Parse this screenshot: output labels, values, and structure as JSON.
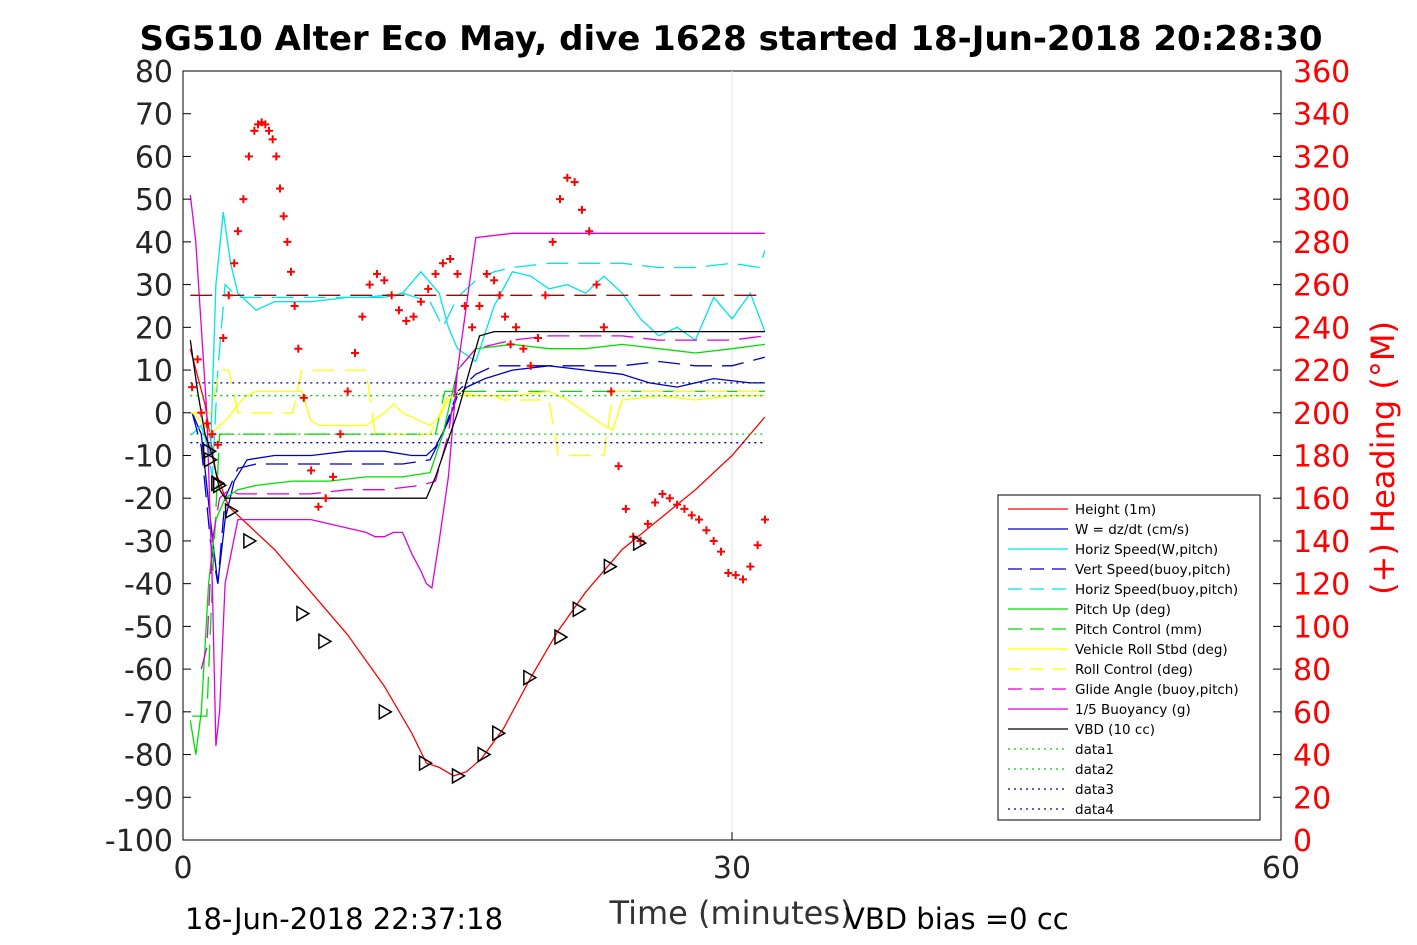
{
  "chart_data": {
    "type": "line",
    "title": "SG510 Alter Eco May, dive 1628 started 18-Jun-2018 20:28:30",
    "xlabel": "Time (minutes)",
    "ylabel_right": "(+) Heading (°M)",
    "xlim": [
      0,
      60
    ],
    "ylim_left": [
      -100,
      80
    ],
    "ylim_right": [
      0,
      360
    ],
    "x_ticks": [
      "0",
      "30",
      "60"
    ],
    "y_ticks_left": [
      "80",
      "70",
      "60",
      "50",
      "40",
      "30",
      "20",
      "10",
      "0",
      "-10",
      "-20",
      "-30",
      "-40",
      "-50",
      "-60",
      "-70",
      "-80",
      "-90",
      "-100"
    ],
    "y_ticks_right": [
      "360",
      "340",
      "320",
      "300",
      "280",
      "260",
      "240",
      "220",
      "200",
      "180",
      "160",
      "140",
      "120",
      "100",
      "80",
      "60",
      "40",
      "20",
      "0"
    ],
    "grid": "x-only",
    "footer_left": "18-Jun-2018 22:37:18",
    "footer_right": "VBD bias =0 cc",
    "legend_position": "lower-right",
    "legend": [
      {
        "name": "Height (1m)",
        "color": "#ff0000",
        "style": "solid"
      },
      {
        "name": "W = dz/dt (cm/s)",
        "color": "#0000cc",
        "style": "solid"
      },
      {
        "name": "Horiz Speed(W,pitch)",
        "color": "#00e5e5",
        "style": "solid"
      },
      {
        "name": "Vert Speed(buoy,pitch)",
        "color": "#0000cc",
        "style": "dashed"
      },
      {
        "name": "Horiz Speed(buoy,pitch)",
        "color": "#00e5e5",
        "style": "dashed"
      },
      {
        "name": "Pitch Up (deg)",
        "color": "#00dd00",
        "style": "solid"
      },
      {
        "name": "Pitch Control (mm)",
        "color": "#00dd00",
        "style": "dashed"
      },
      {
        "name": "Vehicle Roll Stbd (deg)",
        "color": "#ffff00",
        "style": "solid"
      },
      {
        "name": "Roll Control (deg)",
        "color": "#ffff00",
        "style": "dashed"
      },
      {
        "name": "Glide Angle (buoy,pitch)",
        "color": "#dd00dd",
        "style": "dashed"
      },
      {
        "name": "1/5 Buoyancy (g)",
        "color": "#dd00dd",
        "style": "solid"
      },
      {
        "name": "VBD (10 cc)",
        "color": "#000000",
        "style": "solid"
      },
      {
        "name": "data1",
        "color": "#00cc00",
        "style": "dotted"
      },
      {
        "name": "data2",
        "color": "#00cc00",
        "style": "dotted"
      },
      {
        "name": "data3",
        "color": "#000088",
        "style": "dotted"
      },
      {
        "name": "data4",
        "color": "#000088",
        "style": "dotted"
      }
    ],
    "series": [
      {
        "name": "Height (1m)",
        "color": "#ff0000",
        "style": "solid",
        "x": [
          0.4,
          1.2,
          1.8,
          2.5,
          3.5,
          5,
          7,
          9,
          11,
          12.5,
          13.3,
          14,
          14.8,
          15.5,
          16.3,
          17.5,
          19,
          20.5,
          22,
          24,
          26,
          28,
          30,
          31.8
        ],
        "y": [
          15,
          2,
          -14,
          -22,
          -26,
          -32,
          -42,
          -52,
          -64,
          -75,
          -82,
          -83,
          -85,
          -84,
          -81,
          -74,
          -62,
          -51,
          -42,
          -32,
          -25,
          -18,
          -10,
          -1
        ]
      },
      {
        "name": "W = dz/dt (cm/s)",
        "color": "#0000cc",
        "style": "solid",
        "x": [
          0.5,
          1,
          1.5,
          1.9,
          2.3,
          2.8,
          3.5,
          5,
          7,
          9,
          11,
          12.5,
          13.3,
          13.8,
          14.5,
          15,
          15.5,
          16.5,
          18,
          20,
          22,
          24,
          25.5,
          27,
          29,
          31,
          31.8
        ],
        "y": [
          0,
          -5,
          -25,
          -40,
          -25,
          -16,
          -11,
          -10,
          -10,
          -9,
          -9,
          -10,
          -10,
          -8,
          -2,
          4,
          6,
          8,
          10,
          11,
          10,
          9,
          7,
          6,
          8,
          7,
          7
        ]
      },
      {
        "name": "Horiz Speed(W,pitch)",
        "color": "#00e5e5",
        "style": "solid",
        "x": [
          0.5,
          1,
          1.5,
          1.8,
          2.2,
          2.6,
          3,
          4,
          5,
          7,
          9,
          11,
          12,
          13,
          14,
          14.5,
          15,
          16,
          17,
          18,
          19,
          20,
          21,
          22,
          23,
          24,
          25,
          26,
          27,
          28,
          29,
          30,
          31,
          31.8
        ],
        "y": [
          -5,
          -3,
          -10,
          30,
          47,
          35,
          28,
          24,
          26,
          26,
          27,
          27,
          28,
          33,
          28,
          20,
          15,
          12,
          25,
          33,
          32,
          29,
          30,
          28,
          32,
          28,
          22,
          18,
          20,
          17,
          27,
          22,
          28,
          19
        ]
      },
      {
        "name": "Vert Speed(buoy,pitch)",
        "color": "#0000cc",
        "style": "dashed",
        "x": [
          0.5,
          1,
          1.5,
          1.9,
          2.3,
          3,
          4,
          6,
          8,
          10,
          12,
          13.5,
          14.2,
          15,
          16,
          17,
          18,
          20,
          22,
          24,
          26,
          28,
          30,
          31.8
        ],
        "y": [
          0,
          -8,
          -30,
          -40,
          -20,
          -13,
          -12,
          -12,
          -12,
          -12,
          -12,
          -11,
          -5,
          5,
          9,
          11,
          11,
          11,
          11,
          11,
          12,
          11,
          11,
          13
        ]
      },
      {
        "name": "Horiz Speed(buoy,pitch)",
        "color": "#00e5e5",
        "style": "dashed",
        "x": [
          1.2,
          1.6,
          1.9,
          2.3,
          3,
          4,
          6,
          8,
          10,
          12,
          13.5,
          14.2,
          15,
          16,
          17,
          18,
          20,
          22,
          24,
          26,
          28,
          30,
          31.5,
          31.8
        ],
        "y": [
          -5,
          -15,
          10,
          30,
          27,
          27,
          27,
          27,
          27,
          28,
          26,
          20,
          27,
          31,
          33,
          34,
          35,
          35,
          35,
          34,
          34,
          35,
          34,
          38
        ]
      },
      {
        "name": "Pitch Up (deg)",
        "color": "#00dd00",
        "style": "solid",
        "x": [
          0.4,
          0.7,
          1,
          1.4,
          1.8,
          2.3,
          3,
          4,
          6,
          8,
          10,
          12,
          13.5,
          14.2,
          15,
          16,
          18,
          20,
          22,
          24,
          26,
          28,
          30,
          31.8
        ],
        "y": [
          -72,
          -80,
          -70,
          -40,
          -25,
          -20,
          -18,
          -17,
          -16,
          -16,
          -15,
          -15,
          -14,
          -5,
          10,
          15,
          16,
          15,
          15,
          16,
          15,
          14,
          15,
          16
        ]
      },
      {
        "name": "Pitch Control (mm)",
        "color": "#00dd00",
        "style": "dashed",
        "x": [
          0.5,
          1.3,
          1.6,
          2,
          3,
          6,
          10,
          13.8,
          14.3,
          31.8
        ],
        "y": [
          -71,
          -71,
          -40,
          -5,
          -5,
          -5,
          -5,
          -5,
          5,
          5
        ]
      },
      {
        "name": "Vehicle Roll Stbd (deg)",
        "color": "#ffff00",
        "style": "solid",
        "x": [
          0.5,
          1,
          1.5,
          2,
          2.5,
          3,
          3.5,
          4,
          5,
          6,
          6.5,
          7,
          7.5,
          8,
          9,
          10,
          11,
          11.5,
          12,
          13,
          13.5,
          14,
          14.5,
          15,
          16,
          18,
          20,
          21,
          22,
          23,
          23.5,
          24,
          26,
          28,
          30,
          31.8
        ],
        "y": [
          0,
          -2,
          -5,
          -3,
          -1,
          2,
          4,
          5,
          5,
          5,
          5,
          -2,
          -3,
          -3,
          -3,
          -3,
          0,
          2,
          0,
          -2,
          -3,
          -1,
          3,
          5,
          4,
          4,
          5,
          3,
          0,
          -3,
          -4,
          3,
          4,
          3,
          4,
          4
        ]
      },
      {
        "name": "Roll Control (deg)",
        "color": "#ffff00",
        "style": "dashed",
        "x": [
          0.5,
          1.5,
          2,
          2.5,
          3,
          3.5,
          6,
          6.5,
          7,
          10,
          10.5,
          11,
          12,
          13.5,
          14.5,
          17,
          17.5,
          20,
          20.5,
          21,
          22.5,
          23,
          23.5,
          24,
          31.8
        ],
        "y": [
          0,
          0,
          10,
          10,
          0,
          0,
          0,
          10,
          10,
          10,
          -5,
          -5,
          -5,
          -5,
          4,
          4,
          3,
          3,
          -10,
          -10,
          -10,
          -10,
          5,
          5,
          5
        ]
      },
      {
        "name": "Glide Angle (buoy,pitch)",
        "color": "#dd00dd",
        "style": "dashed",
        "x": [
          1.0,
          1.3,
          1.6,
          2.0,
          2.5,
          3,
          5,
          7,
          9,
          11,
          13,
          13.8,
          14.5,
          15,
          16,
          18,
          20,
          22,
          24,
          26,
          28,
          30,
          31.8
        ],
        "y": [
          -60,
          -55,
          -30,
          -20,
          -18,
          -19,
          -19,
          -19,
          -18,
          -18,
          -17,
          -16,
          -5,
          10,
          15,
          17,
          18,
          18,
          18,
          17,
          17,
          17,
          18
        ]
      },
      {
        "name": "1/5 Buoyancy (g)",
        "color": "#dd00dd",
        "style": "solid",
        "x": [
          0.4,
          0.7,
          1.0,
          1.3,
          1.6,
          1.8,
          2.0,
          2.3,
          3,
          5,
          6,
          7,
          8,
          9,
          10,
          10.5,
          11,
          11.5,
          12,
          12.5,
          13,
          13.3,
          13.6,
          14,
          14.5,
          15,
          16,
          18,
          20,
          22,
          24,
          26,
          28,
          30,
          31.8
        ],
        "y": [
          51,
          40,
          20,
          0,
          -40,
          -78,
          -70,
          -40,
          -25,
          -25,
          -25,
          -25,
          -26,
          -27,
          -28,
          -29,
          -29,
          -28,
          -28,
          -33,
          -37,
          -40,
          -41,
          -30,
          -15,
          10,
          41,
          42,
          42,
          42,
          42,
          42,
          42,
          42,
          42
        ]
      },
      {
        "name": "VBD (10 cc)",
        "color": "#000000",
        "style": "solid",
        "x": [
          0.4,
          0.8,
          1.2,
          1.6,
          2.0,
          2.3,
          3,
          6,
          10,
          12,
          13.3,
          13.8,
          15,
          16.2,
          17,
          20,
          25,
          31.8
        ],
        "y": [
          17,
          5,
          -5,
          -10,
          -18,
          -20,
          -20,
          -20,
          -20,
          -20,
          -20,
          -15,
          0,
          18,
          19,
          19,
          19,
          19
        ]
      },
      {
        "name": "data1",
        "color": "#00cc00",
        "style": "dotted",
        "x": [
          0.4,
          31.8
        ],
        "y": [
          -5,
          -5
        ]
      },
      {
        "name": "data2",
        "color": "#00cc00",
        "style": "dotted",
        "x": [
          0.4,
          31.8
        ],
        "y": [
          4,
          4
        ]
      },
      {
        "name": "data3",
        "color": "#000088",
        "style": "dotted",
        "x": [
          0.4,
          31.8
        ],
        "y": [
          7,
          7
        ]
      },
      {
        "name": "data4",
        "color": "#000088",
        "style": "dotted",
        "x": [
          0.4,
          31.8
        ],
        "y": [
          -7,
          -7
        ]
      },
      {
        "name": "",
        "color": "#aa0000",
        "style": "dashed",
        "x": [
          0.4,
          31.8
        ],
        "y": [
          27.5,
          27.5
        ]
      }
    ],
    "markers": {
      "color": "#000000",
      "shape": "triangle",
      "x": [
        1.4,
        1.45,
        1.85,
        1.95,
        2.6,
        3.6,
        6.5,
        7.7,
        11,
        13.2,
        15,
        16.4,
        17.2,
        18.9,
        20.6,
        21.6,
        23.3,
        24.9
      ],
      "y": [
        -9,
        -11,
        -16.5,
        -17,
        -23,
        -30,
        -47,
        -53.5,
        -70,
        -82,
        -85,
        -80,
        -75,
        -62,
        -52.5,
        -46,
        -36,
        -30.5
      ]
    },
    "heading": {
      "name": "(+) Heading (°M)",
      "color": "#ff0000",
      "marker": "+",
      "axis": "right",
      "x": [
        0.5,
        0.8,
        1.0,
        1.3,
        1.6,
        1.9,
        2.2,
        2.5,
        2.8,
        3.0,
        3.3,
        3.6,
        3.9,
        4.1,
        4.3,
        4.5,
        4.7,
        4.9,
        5.1,
        5.3,
        5.5,
        5.7,
        5.9,
        6.1,
        6.3,
        6.6,
        7.0,
        7.4,
        7.8,
        8.2,
        8.6,
        9.0,
        9.4,
        9.8,
        10.2,
        10.6,
        11.0,
        11.4,
        11.8,
        12.2,
        12.6,
        13.0,
        13.4,
        13.8,
        14.2,
        14.6,
        15.0,
        15.4,
        15.8,
        16.2,
        16.6,
        17.0,
        17.3,
        17.6,
        17.9,
        18.2,
        18.6,
        19.0,
        19.4,
        19.8,
        20.2,
        20.6,
        21.0,
        21.4,
        21.8,
        22.2,
        22.6,
        23.0,
        23.4,
        23.8,
        24.2,
        24.6,
        25.0,
        25.4,
        25.8,
        26.2,
        26.6,
        27.0,
        27.4,
        27.8,
        28.2,
        28.6,
        29.0,
        29.4,
        29.8,
        30.2,
        30.6,
        31.0,
        31.4,
        31.8
      ],
      "y": [
        212,
        225,
        200,
        195,
        190,
        185,
        235,
        255,
        270,
        285,
        300,
        320,
        332,
        335,
        336,
        335,
        332,
        328,
        320,
        305,
        292,
        280,
        266,
        250,
        230,
        207,
        173,
        156,
        160,
        170,
        190,
        210,
        228,
        245,
        260,
        265,
        262,
        255,
        248,
        243,
        245,
        252,
        258,
        265,
        270,
        272,
        265,
        250,
        240,
        250,
        265,
        262,
        255,
        245,
        232,
        240,
        230,
        222,
        235,
        255,
        280,
        300,
        310,
        308,
        295,
        285,
        260,
        240,
        210,
        175,
        155,
        142,
        140,
        148,
        158,
        162,
        160,
        157,
        155,
        152,
        150,
        145,
        140,
        135,
        125,
        124,
        122,
        128,
        138,
        150
      ]
    }
  }
}
